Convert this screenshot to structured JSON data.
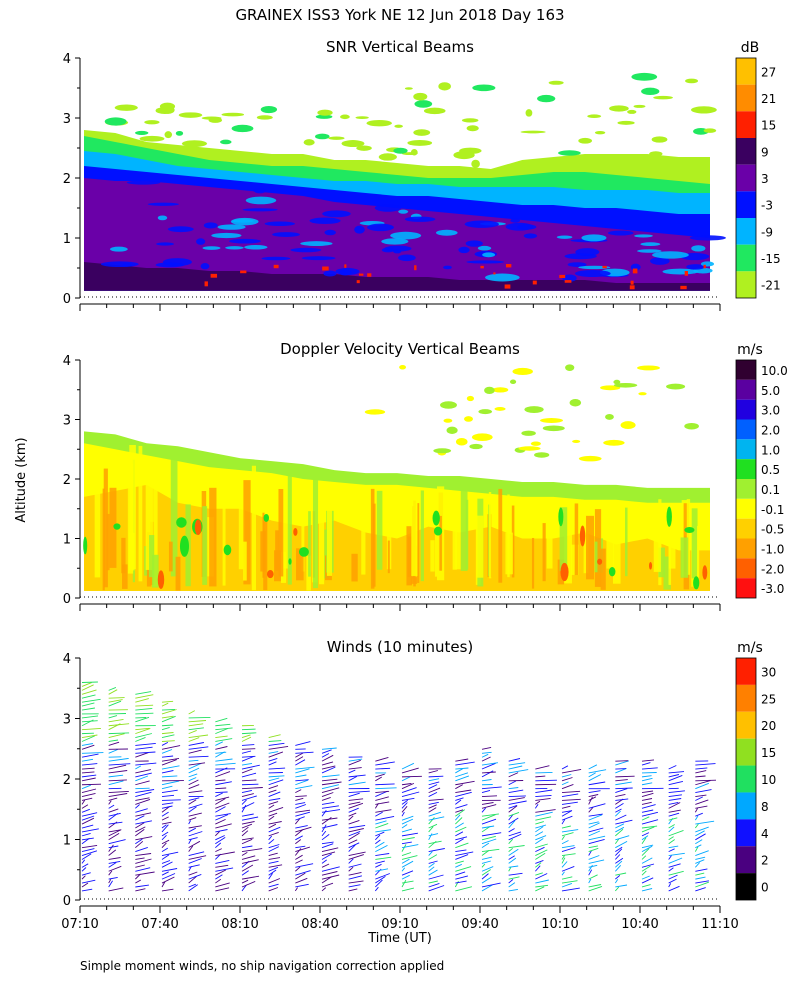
{
  "title": "GRAINEX ISS3 York NE  12 Jun 2018 Day 163",
  "footnote": "Simple moment winds, no ship navigation correction applied",
  "y_axis_label": "Altitude (km)",
  "x_axis_label": "Time (UT)",
  "x_ticks": [
    "07:10",
    "07:40",
    "08:10",
    "08:40",
    "09:10",
    "09:40",
    "10:10",
    "10:40",
    "11:10"
  ],
  "y_ticks": [
    "0",
    "1",
    "2",
    "3",
    "4"
  ],
  "chart_data": [
    {
      "type": "heatmap",
      "title": "SNR Vertical Beams",
      "xlabel": "",
      "ylabel": "Altitude (km)",
      "xlim": [
        "07:10",
        "11:10"
      ],
      "ylim": [
        0,
        4
      ],
      "colorbar": {
        "unit": "dB",
        "labels": [
          "27",
          "21",
          "15",
          "9",
          "3",
          "-3",
          "-9",
          "-15",
          "-21"
        ],
        "colors": [
          "#ffc000",
          "#ff8c00",
          "#ff2000",
          "#3a0060",
          "#6a00a8",
          "#0010ff",
          "#00b4ff",
          "#20e860",
          "#b0f020"
        ]
      },
      "layers": [
        {
          "band": "-21",
          "top": [
            2.8,
            2.75,
            2.6,
            2.55,
            2.5,
            2.45,
            2.4,
            2.4,
            2.3,
            2.3,
            2.25,
            2.2,
            2.2,
            2.15,
            2.3,
            2.35,
            2.4,
            2.4,
            2.4,
            2.35,
            2.35
          ]
        },
        {
          "band": "-15",
          "top": [
            2.7,
            2.6,
            2.5,
            2.4,
            2.3,
            2.25,
            2.2,
            2.2,
            2.15,
            2.1,
            2.05,
            2.0,
            2.0,
            2.0,
            2.05,
            2.1,
            2.1,
            2.05,
            2.0,
            1.95,
            1.9
          ]
        },
        {
          "band": "-9",
          "top": [
            2.45,
            2.4,
            2.3,
            2.2,
            2.15,
            2.1,
            2.05,
            2.0,
            1.95,
            1.95,
            1.9,
            1.9,
            1.85,
            1.85,
            1.85,
            1.85,
            1.8,
            1.8,
            1.8,
            1.75,
            1.75
          ]
        },
        {
          "band": "-3",
          "top": [
            2.2,
            2.15,
            2.1,
            2.05,
            2.0,
            1.95,
            1.9,
            1.85,
            1.8,
            1.75,
            1.7,
            1.7,
            1.65,
            1.6,
            1.55,
            1.55,
            1.5,
            1.5,
            1.45,
            1.4,
            1.4
          ]
        },
        {
          "band": "3",
          "top": [
            2.0,
            1.95,
            1.95,
            1.9,
            1.85,
            1.8,
            1.75,
            1.7,
            1.6,
            1.55,
            1.5,
            1.45,
            1.4,
            1.35,
            1.3,
            1.25,
            1.2,
            1.15,
            1.1,
            1.05,
            1.0
          ]
        },
        {
          "band": "9",
          "top": [
            0.6,
            0.55,
            0.5,
            0.5,
            0.45,
            0.45,
            0.4,
            0.4,
            0.4,
            0.35,
            0.35,
            0.35,
            0.3,
            0.3,
            0.3,
            0.3,
            0.3,
            0.25,
            0.25,
            0.25,
            0.25
          ]
        }
      ]
    },
    {
      "type": "heatmap",
      "title": "Doppler Velocity Vertical Beams",
      "xlabel": "",
      "ylabel": "Altitude (km)",
      "xlim": [
        "07:10",
        "11:10"
      ],
      "ylim": [
        0,
        4
      ],
      "colorbar": {
        "unit": "m/s",
        "labels": [
          "10.0",
          "5.0",
          "3.0",
          "2.0",
          "1.0",
          "0.5",
          "0.1",
          "-0.1",
          "-0.5",
          "-1.0",
          "-2.0",
          "-3.0"
        ],
        "colors": [
          "#300030",
          "#5a00a0",
          "#2000e0",
          "#0060ff",
          "#00b4f0",
          "#20e020",
          "#a0f030",
          "#ffff00",
          "#ffd000",
          "#ffa000",
          "#ff6000",
          "#ff1010"
        ]
      },
      "top": [
        2.8,
        2.75,
        2.6,
        2.55,
        2.45,
        2.35,
        2.3,
        2.25,
        2.15,
        2.1,
        2.1,
        2.05,
        2.05,
        2.0,
        1.95,
        1.95,
        1.9,
        1.9,
        1.85,
        1.85,
        1.85
      ],
      "layers": [
        {
          "band": "0.1",
          "top": [
            2.8,
            2.75,
            2.6,
            2.55,
            2.45,
            2.35,
            2.3,
            2.25,
            2.15,
            2.1,
            2.1,
            2.05,
            2.05,
            2.0,
            1.95,
            1.95,
            1.9,
            1.9,
            1.85,
            1.85,
            1.85
          ]
        },
        {
          "band": "-0.1",
          "top": [
            2.6,
            2.5,
            2.4,
            2.3,
            2.2,
            2.15,
            2.1,
            2.0,
            1.95,
            1.9,
            1.9,
            1.85,
            1.8,
            1.75,
            1.7,
            1.7,
            1.65,
            1.65,
            1.6,
            1.6,
            1.6
          ]
        },
        {
          "band": "-0.5",
          "top": [
            1.7,
            1.8,
            1.9,
            1.6,
            1.5,
            1.5,
            1.3,
            1.2,
            1.3,
            1.1,
            1.0,
            1.2,
            1.1,
            1.2,
            1.0,
            1.0,
            1.1,
            0.9,
            1.0,
            0.8,
            0.8
          ]
        }
      ]
    },
    {
      "type": "wind_barbs",
      "title": "Winds (10 minutes)",
      "xlabel": "Time (UT)",
      "ylabel": "Altitude (km)",
      "xlim": [
        "07:10",
        "11:10"
      ],
      "ylim": [
        0,
        4
      ],
      "colorbar": {
        "unit": "m/s",
        "labels": [
          "30",
          "25",
          "20",
          "15",
          "10",
          "8",
          "4",
          "2",
          "0"
        ],
        "colors": [
          "#ff2000",
          "#ff8000",
          "#ffc000",
          "#90e020",
          "#20e060",
          "#00a8ff",
          "#1010ff",
          "#4a0080",
          "#000000"
        ]
      },
      "profile_times": [
        "07:10",
        "07:20",
        "07:30",
        "07:40",
        "07:50",
        "08:00",
        "08:10",
        "08:20",
        "08:30",
        "08:40",
        "08:50",
        "09:00",
        "09:10",
        "09:20",
        "09:30",
        "09:40",
        "09:50",
        "10:00",
        "10:10",
        "10:20",
        "10:30",
        "10:40",
        "10:50",
        "11:00"
      ],
      "profile_top_km": [
        3.6,
        3.5,
        3.4,
        3.3,
        3.1,
        3.0,
        2.9,
        2.7,
        2.6,
        2.5,
        2.4,
        2.3,
        2.2,
        2.2,
        2.3,
        2.5,
        2.3,
        2.2,
        2.2,
        2.2,
        2.3,
        2.3,
        2.2,
        2.3
      ]
    }
  ]
}
